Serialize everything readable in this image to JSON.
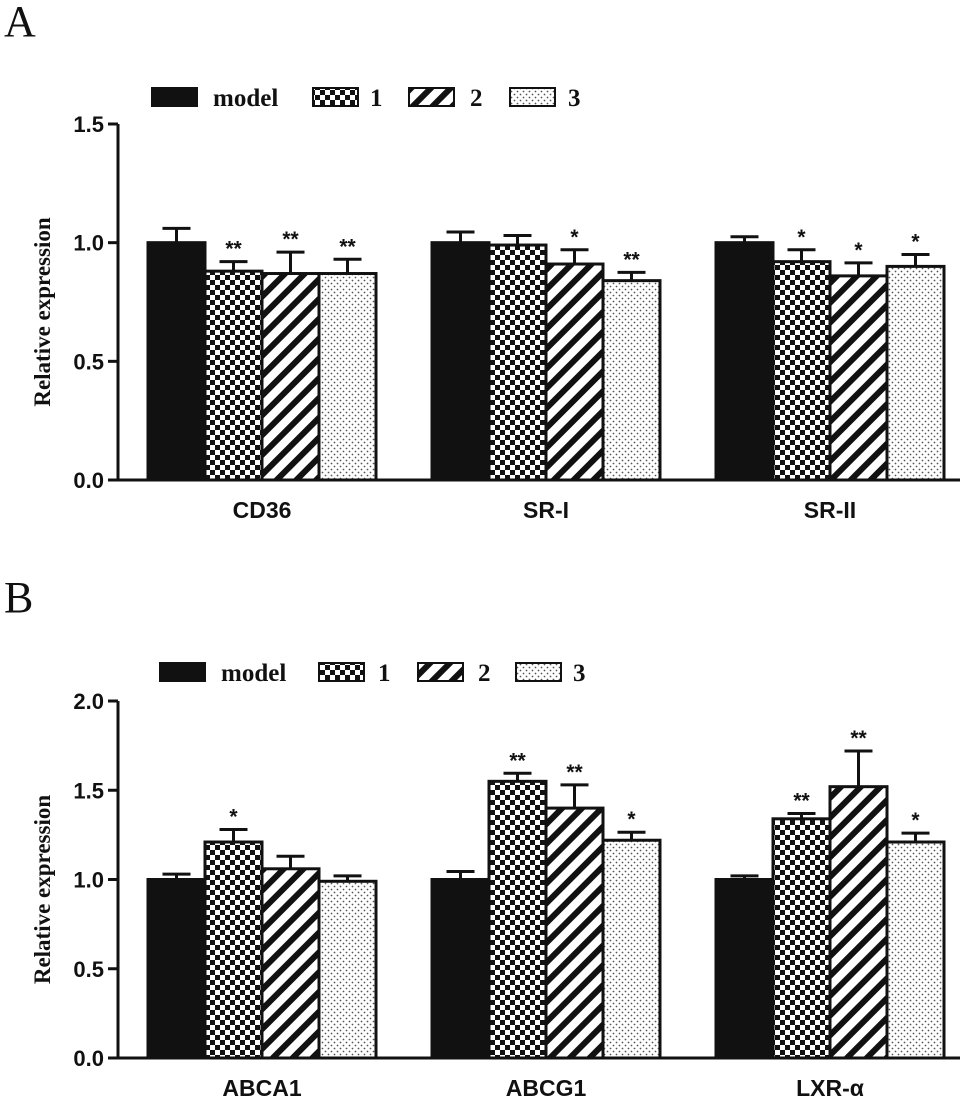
{
  "colors": {
    "ink": "#111111",
    "background": "#ffffff"
  },
  "chart_data": [
    {
      "type": "bar",
      "panel_label": "A",
      "ylabel": "Relative expression",
      "ylim": [
        0,
        1.5
      ],
      "yticks": [
        "0.0",
        "0.5",
        "1.0",
        "1.5"
      ],
      "legend_position": "top-left",
      "categories": [
        "CD36",
        "SR-I",
        "SR-II"
      ],
      "series": [
        {
          "name": "model",
          "pattern": "solid-black",
          "values": [
            1.0,
            1.0,
            1.0
          ],
          "errors": [
            0.06,
            0.045,
            0.025
          ],
          "significance": [
            "",
            "",
            ""
          ]
        },
        {
          "name": "1",
          "pattern": "checkerboard",
          "values": [
            0.88,
            0.99,
            0.92
          ],
          "errors": [
            0.04,
            0.04,
            0.05
          ],
          "significance": [
            "**",
            "",
            "*"
          ]
        },
        {
          "name": "2",
          "pattern": "diagonal-hatch",
          "values": [
            0.87,
            0.91,
            0.86
          ],
          "errors": [
            0.09,
            0.06,
            0.055
          ],
          "significance": [
            "**",
            "*",
            "*"
          ]
        },
        {
          "name": "3",
          "pattern": "dotted",
          "values": [
            0.87,
            0.84,
            0.9
          ],
          "errors": [
            0.06,
            0.035,
            0.05
          ],
          "significance": [
            "**",
            "**",
            "*"
          ]
        }
      ]
    },
    {
      "type": "bar",
      "panel_label": "B",
      "ylabel": "Relative expression",
      "ylim": [
        0,
        2.0
      ],
      "yticks": [
        "0.0",
        "0.5",
        "1.0",
        "1.5",
        "2.0"
      ],
      "legend_position": "top-left",
      "categories": [
        "ABCA1",
        "ABCG1",
        "LXR-α"
      ],
      "series": [
        {
          "name": "model",
          "pattern": "solid-black",
          "values": [
            1.0,
            1.0,
            1.0
          ],
          "errors": [
            0.03,
            0.045,
            0.02
          ],
          "significance": [
            "",
            "",
            ""
          ]
        },
        {
          "name": "1",
          "pattern": "checkerboard",
          "values": [
            1.21,
            1.55,
            1.34
          ],
          "errors": [
            0.07,
            0.045,
            0.03
          ],
          "significance": [
            "*",
            "**",
            "**"
          ]
        },
        {
          "name": "2",
          "pattern": "diagonal-hatch",
          "values": [
            1.06,
            1.4,
            1.52
          ],
          "errors": [
            0.07,
            0.13,
            0.2
          ],
          "significance": [
            "",
            "**",
            "**"
          ]
        },
        {
          "name": "3",
          "pattern": "dotted",
          "values": [
            0.99,
            1.22,
            1.21
          ],
          "errors": [
            0.03,
            0.045,
            0.05
          ],
          "significance": [
            "",
            "*",
            "*"
          ]
        }
      ]
    }
  ]
}
